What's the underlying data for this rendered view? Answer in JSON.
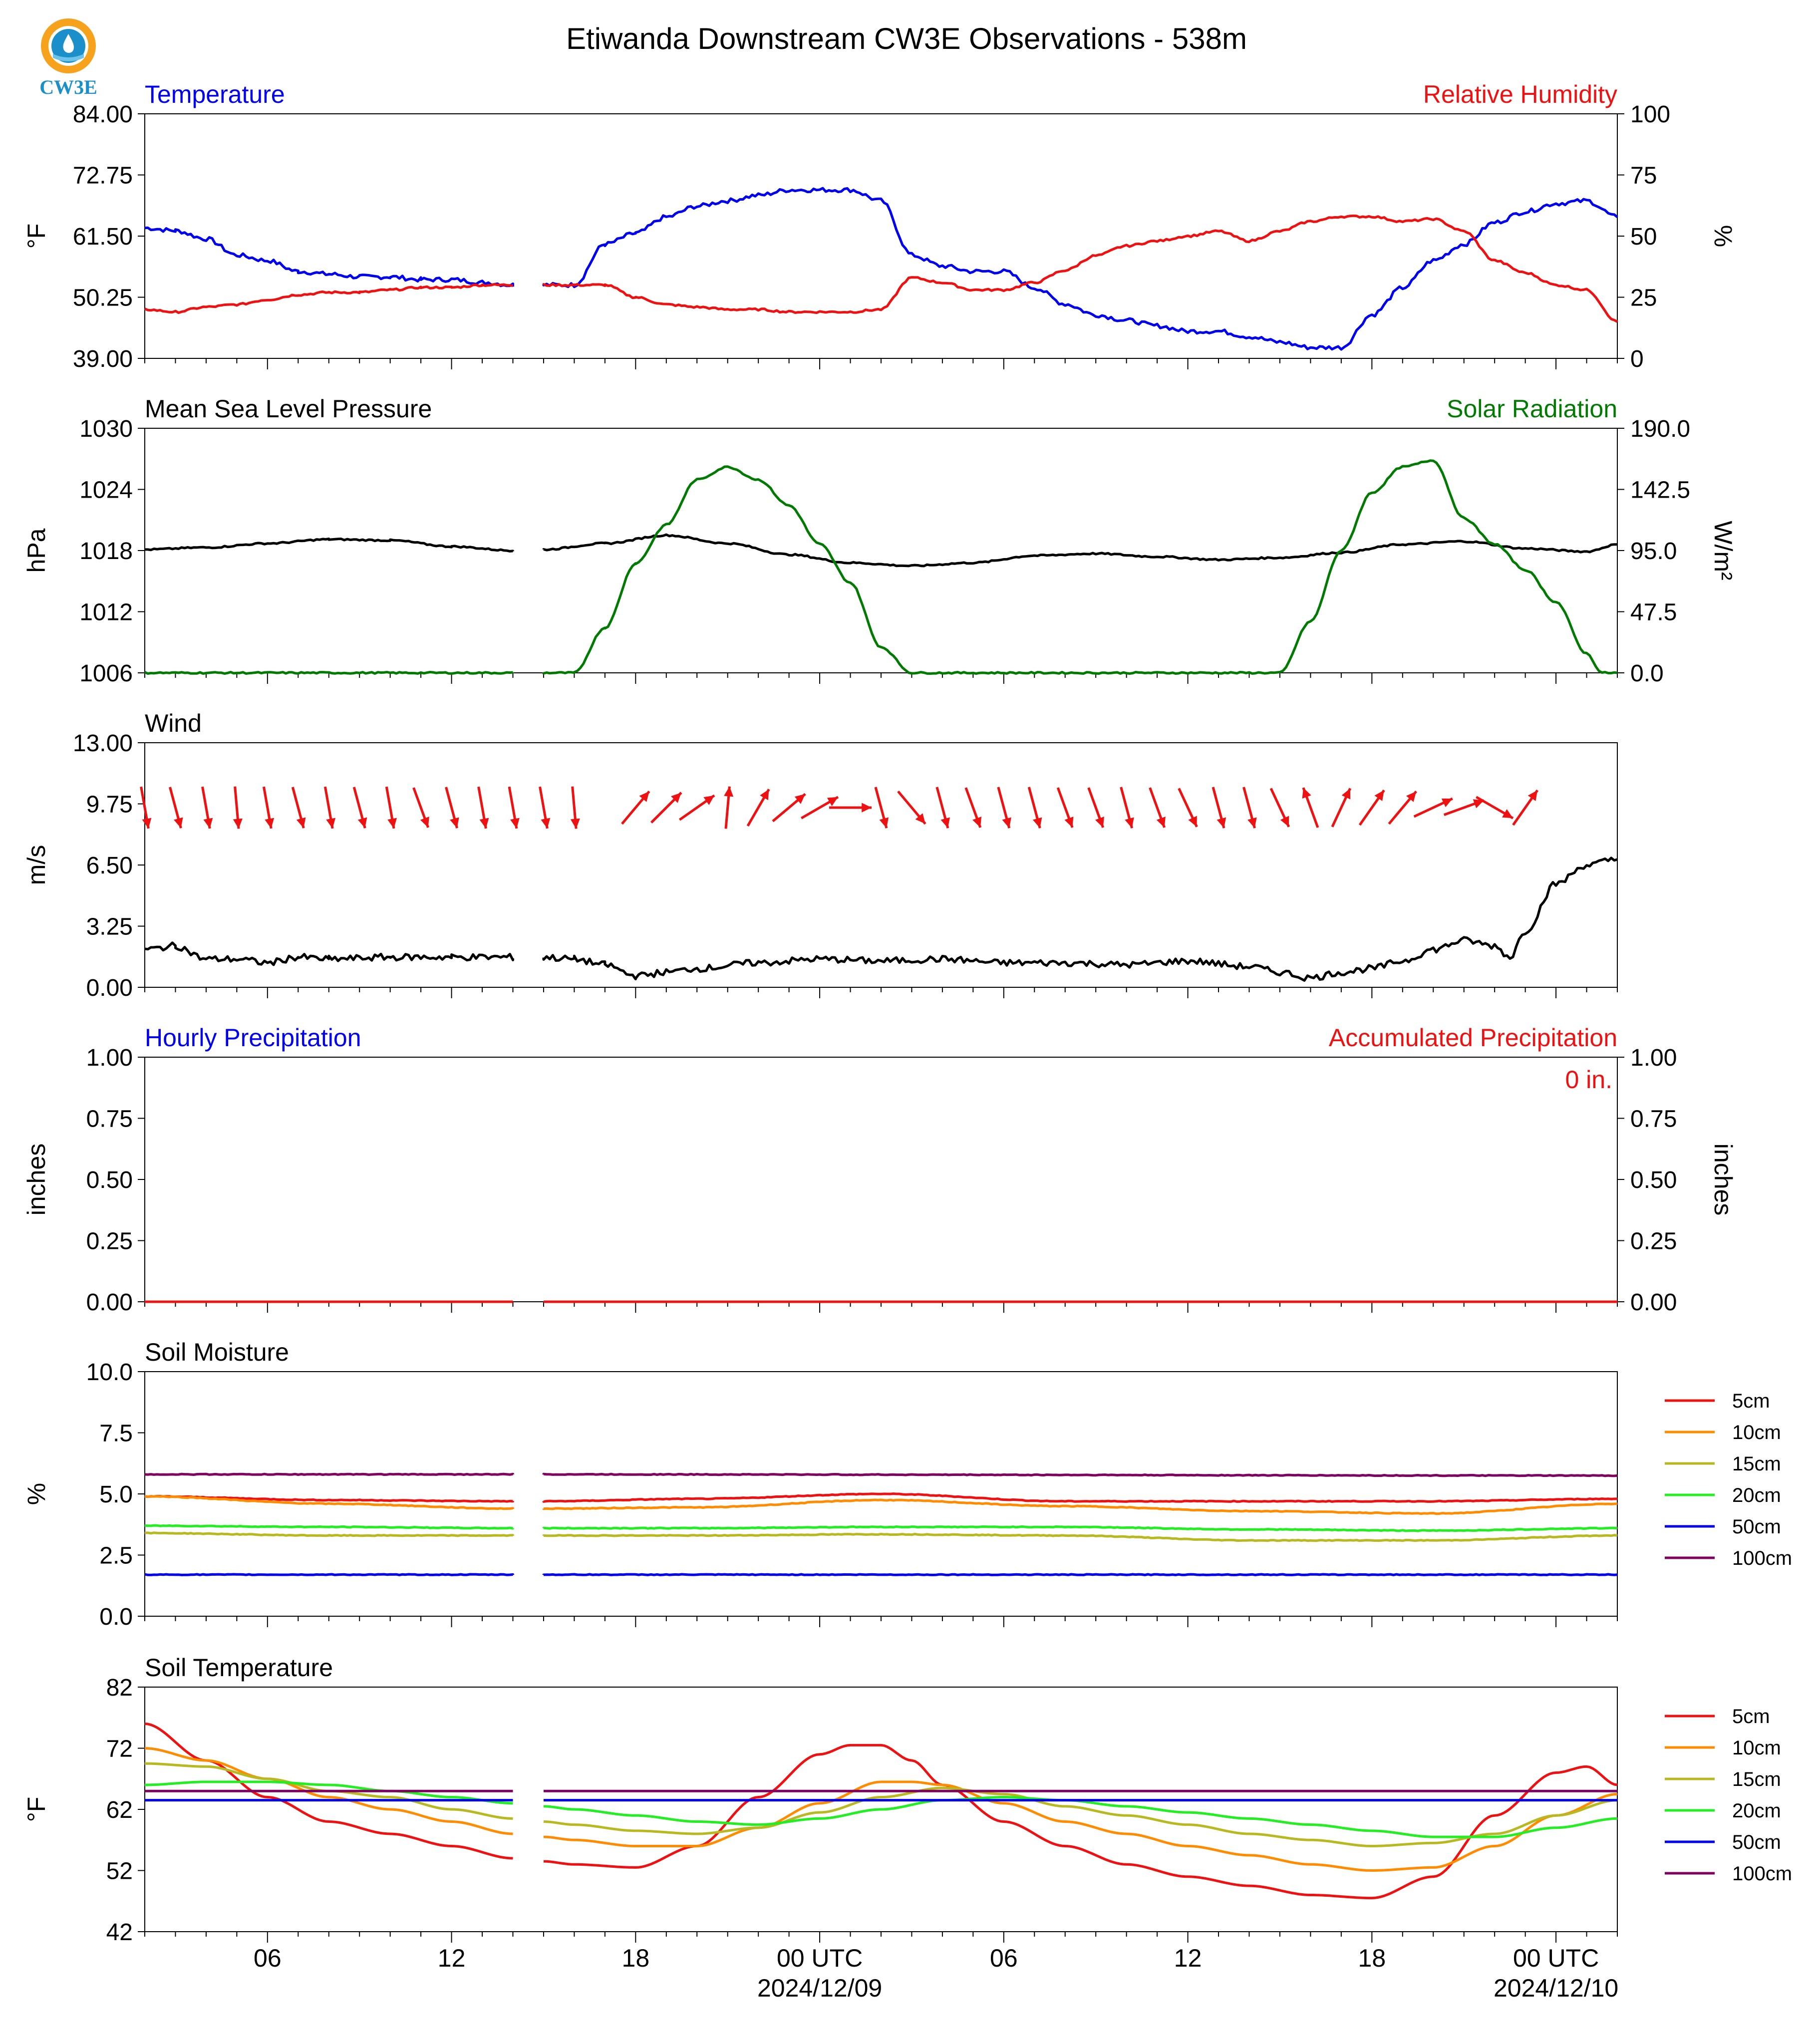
{
  "title": "Etiwanda Downstream CW3E Observations - 538m",
  "logo_text": "CW3E",
  "colors": {
    "blue": "#0000ee",
    "red": "#ee1111",
    "green": "#007a00",
    "black": "#000000",
    "orange": "#ff8c00",
    "olive": "#b8b820",
    "lime": "#22ee22",
    "purple": "#800060"
  },
  "x_axis": {
    "start": "2024-12-08T02:00Z",
    "end": "2024-12-10T02:00Z",
    "gap": [
      "2024-12-08T12:00Z",
      "2024-12-08T13:00Z"
    ],
    "tick_labels": [
      "06",
      "12",
      "18",
      "00 UTC",
      "06",
      "12",
      "18",
      "00 UTC"
    ],
    "date_labels": [
      "2024/12/09",
      "2024/12/10"
    ]
  },
  "chart_data": [
    {
      "type": "line",
      "panel": "temperature_rh",
      "left_title": "Temperature",
      "right_title": "Relative Humidity",
      "ylabel": "°F",
      "ylabel_right": "%",
      "ylim": [
        39,
        84
      ],
      "ylim_right": [
        0,
        100
      ],
      "yticks": [
        "84.00",
        "72.75",
        "61.50",
        "50.25",
        "39.00"
      ],
      "yticks_right": [
        "100",
        "75",
        "50",
        "25",
        "0"
      ],
      "series": [
        {
          "name": "Temperature",
          "axis": "left",
          "color": "blue",
          "x_hours": [
            0,
            1,
            2,
            3,
            4,
            5,
            6,
            7,
            8,
            9,
            10,
            11,
            12,
            13,
            14,
            15,
            16,
            17,
            18,
            19,
            20,
            21,
            22,
            23,
            24,
            25,
            26,
            27,
            28,
            29,
            30,
            31,
            32,
            33,
            34,
            35,
            36,
            37,
            38,
            39,
            40,
            41,
            42,
            43,
            44,
            45,
            46,
            47,
            48
          ],
          "values": [
            63,
            62.5,
            61,
            58,
            57,
            55,
            54.5,
            54,
            54,
            53.5,
            53.5,
            53,
            52.5,
            52.5,
            52.5,
            60,
            62,
            65,
            67,
            68,
            69,
            70,
            70,
            70,
            68,
            58,
            56,
            55,
            55,
            52,
            49,
            47,
            46,
            45,
            44,
            44,
            43,
            42,
            41,
            41,
            47,
            52,
            57,
            60,
            64,
            66,
            67.5,
            68,
            65
          ]
        },
        {
          "name": "Relative Humidity",
          "axis": "right",
          "color": "red",
          "x_hours": [
            0,
            1,
            2,
            3,
            4,
            5,
            6,
            7,
            8,
            9,
            10,
            11,
            12,
            13,
            14,
            15,
            16,
            17,
            18,
            19,
            20,
            21,
            22,
            23,
            24,
            25,
            26,
            27,
            28,
            29,
            30,
            31,
            32,
            33,
            34,
            35,
            36,
            37,
            38,
            39,
            40,
            41,
            42,
            43,
            44,
            45,
            46,
            47,
            48
          ],
          "values": [
            20,
            19,
            21,
            22,
            24,
            26,
            27,
            27,
            28,
            29,
            29,
            30,
            30,
            30,
            30,
            30,
            25,
            22,
            21,
            20,
            20,
            19,
            19,
            19,
            20,
            33,
            31,
            28,
            28,
            31,
            36,
            42,
            46,
            48,
            50,
            52,
            48,
            52,
            56,
            58,
            58,
            56,
            57,
            52,
            40,
            35,
            30,
            28,
            15
          ]
        }
      ]
    },
    {
      "type": "line",
      "panel": "pressure_solar",
      "left_title": "Mean Sea Level Pressure",
      "right_title": "Solar Radiation",
      "ylabel": "hPa",
      "ylabel_right": "W/m²",
      "ylim": [
        1006,
        1030
      ],
      "ylim_right": [
        0,
        190
      ],
      "yticks": [
        "1030",
        "1024",
        "1018",
        "1012",
        "1006"
      ],
      "yticks_right": [
        "190.0",
        "142.5",
        "95.0",
        "47.5",
        "0.0"
      ],
      "series": [
        {
          "name": "Mean Sea Level Pressure",
          "axis": "left",
          "color": "black",
          "x_hours": [
            0,
            2,
            4,
            6,
            8,
            10,
            12,
            13,
            15,
            17,
            19,
            21,
            23,
            25,
            27,
            29,
            31,
            33,
            35,
            37,
            39,
            41,
            43,
            45,
            47,
            48
          ],
          "values": [
            1018.1,
            1018.3,
            1018.7,
            1019.1,
            1019,
            1018.4,
            1018,
            1018.1,
            1018.7,
            1019.5,
            1018.7,
            1017.6,
            1016.8,
            1016.5,
            1016.8,
            1017.5,
            1017.7,
            1017.4,
            1017.1,
            1017.3,
            1017.8,
            1018.6,
            1018.9,
            1018.2,
            1017.9,
            1018.6
          ]
        },
        {
          "name": "Solar Radiation",
          "axis": "right",
          "color": "green",
          "x_hours": [
            0,
            12,
            13,
            14,
            15,
            16,
            17,
            18,
            19,
            20,
            21,
            22,
            23,
            24,
            25,
            26,
            36,
            37,
            38,
            39,
            40,
            41,
            42,
            43,
            44,
            45,
            46,
            47,
            47.5,
            48
          ],
          "values": [
            0,
            0,
            0,
            0,
            35,
            85,
            115,
            150,
            160,
            150,
            130,
            100,
            70,
            20,
            0,
            0,
            0,
            0,
            40,
            95,
            140,
            160,
            165,
            120,
            100,
            80,
            55,
            15,
            0,
            0
          ]
        }
      ]
    },
    {
      "type": "line",
      "panel": "wind",
      "left_title": "Wind",
      "ylabel": "m/s",
      "ylim": [
        0,
        13
      ],
      "yticks": [
        "13.00",
        "9.75",
        "6.50",
        "3.25",
        "0.00"
      ],
      "series": [
        {
          "name": "Wind",
          "axis": "left",
          "color": "black",
          "x_hours": [
            0,
            1,
            2,
            3,
            4,
            5,
            6,
            8,
            10,
            12,
            13,
            14,
            15,
            16,
            17,
            18,
            20,
            22,
            24,
            26,
            28,
            30,
            32,
            34,
            36,
            37,
            38,
            39,
            40,
            41,
            42,
            43,
            44,
            44.5,
            45,
            46,
            47,
            48
          ],
          "values": [
            2,
            2.2,
            1.5,
            1.5,
            1.3,
            1.6,
            1.5,
            1.6,
            1.6,
            1.6,
            1.6,
            1.5,
            1.2,
            0.6,
            0.8,
            1,
            1.3,
            1.5,
            1.4,
            1.5,
            1.3,
            1.3,
            1.2,
            1.4,
            1.1,
            0.8,
            0.5,
            0.8,
            1,
            1.4,
            2,
            2.5,
            2.2,
            1.6,
            3,
            5.5,
            6.5,
            6.8
          ]
        },
        {
          "name": "Wind direction (deg, from)",
          "axis": "none",
          "kind": "barbs",
          "x_hours": [
            0,
            1,
            2,
            3,
            4,
            5,
            6,
            7,
            8,
            9,
            10,
            11,
            12,
            13,
            14,
            16,
            17,
            18,
            19,
            20,
            21,
            22,
            23,
            24,
            25,
            26,
            27,
            28,
            29,
            30,
            31,
            32,
            33,
            34,
            35,
            36,
            37,
            38,
            39,
            40,
            41,
            42,
            43,
            44,
            45
          ],
          "values": [
            350,
            345,
            350,
            355,
            350,
            345,
            350,
            345,
            350,
            340,
            345,
            350,
            350,
            350,
            355,
            220,
            225,
            235,
            185,
            210,
            230,
            240,
            270,
            345,
            320,
            345,
            340,
            345,
            345,
            340,
            340,
            345,
            340,
            335,
            345,
            345,
            335,
            160,
            205,
            215,
            220,
            245,
            250,
            300,
            215
          ]
        }
      ]
    },
    {
      "type": "line",
      "panel": "precipitation",
      "left_title": "Hourly Precipitation",
      "right_title": "Accumulated Precipitation",
      "annotation": "0 in.",
      "ylabel": "inches",
      "ylabel_right": "inches",
      "ylim": [
        0,
        1
      ],
      "ylim_right": [
        0,
        1
      ],
      "yticks": [
        "1.00",
        "0.75",
        "0.50",
        "0.25",
        "0.00"
      ],
      "yticks_right": [
        "1.00",
        "0.75",
        "0.50",
        "0.25",
        "0.00"
      ],
      "series": [
        {
          "name": "Hourly Precipitation",
          "axis": "left",
          "color": "red",
          "x_hours": [
            0,
            48
          ],
          "values": [
            0,
            0
          ]
        }
      ]
    },
    {
      "type": "line",
      "panel": "soil_moisture",
      "left_title": "Soil Moisture",
      "ylabel": "%",
      "ylim": [
        0,
        10
      ],
      "yticks": [
        "10.0",
        "7.5",
        "5.0",
        "2.5",
        "0.0"
      ],
      "legend_position": "right",
      "series": [
        {
          "name": "5cm",
          "color": "red",
          "x_hours": [
            0,
            6,
            12,
            13,
            18,
            24,
            30,
            36,
            42,
            48
          ],
          "values": [
            4.9,
            4.75,
            4.7,
            4.7,
            4.8,
            5.0,
            4.7,
            4.7,
            4.7,
            4.8
          ]
        },
        {
          "name": "10cm",
          "color": "orange",
          "x_hours": [
            0,
            6,
            12,
            13,
            18,
            24,
            30,
            36,
            42,
            48
          ],
          "values": [
            4.9,
            4.6,
            4.4,
            4.4,
            4.45,
            4.75,
            4.5,
            4.3,
            4.2,
            4.6
          ]
        },
        {
          "name": "15cm",
          "color": "olive",
          "x_hours": [
            0,
            6,
            12,
            13,
            18,
            24,
            30,
            36,
            42,
            48
          ],
          "values": [
            3.4,
            3.3,
            3.3,
            3.3,
            3.3,
            3.35,
            3.3,
            3.1,
            3.1,
            3.3
          ]
        },
        {
          "name": "20cm",
          "color": "lime",
          "x_hours": [
            0,
            6,
            12,
            13,
            18,
            24,
            30,
            36,
            42,
            48
          ],
          "values": [
            3.7,
            3.65,
            3.6,
            3.6,
            3.6,
            3.65,
            3.65,
            3.55,
            3.5,
            3.6
          ]
        },
        {
          "name": "50cm",
          "color": "blue",
          "x_hours": [
            0,
            12,
            13,
            48
          ],
          "values": [
            1.7,
            1.7,
            1.7,
            1.7
          ]
        },
        {
          "name": "100cm",
          "color": "purple",
          "x_hours": [
            0,
            12,
            13,
            48
          ],
          "values": [
            5.8,
            5.8,
            5.8,
            5.75
          ]
        }
      ]
    },
    {
      "type": "line",
      "panel": "soil_temperature",
      "left_title": "Soil Temperature",
      "ylabel": "°F",
      "ylim": [
        42,
        82
      ],
      "yticks": [
        "82",
        "72",
        "62",
        "52",
        "42"
      ],
      "legend_position": "right",
      "series": [
        {
          "name": "5cm",
          "color": "red",
          "x_hours": [
            0,
            2,
            4,
            6,
            8,
            10,
            12,
            13,
            14,
            16,
            18,
            20,
            22,
            23,
            24,
            25,
            26,
            28,
            30,
            32,
            34,
            36,
            38,
            40,
            42,
            44,
            46,
            47,
            48
          ],
          "values": [
            76,
            70,
            64,
            60,
            58,
            56,
            54,
            53.5,
            53,
            52.5,
            56,
            64,
            71,
            72.5,
            72.5,
            70,
            66,
            60,
            56,
            53,
            51,
            49.5,
            48,
            47.5,
            51,
            61,
            68,
            69,
            66
          ]
        },
        {
          "name": "10cm",
          "color": "orange",
          "x_hours": [
            0,
            2,
            4,
            6,
            8,
            10,
            12,
            13,
            14,
            16,
            18,
            20,
            22,
            24,
            25,
            26,
            28,
            30,
            32,
            34,
            36,
            38,
            40,
            42,
            44,
            46,
            48
          ],
          "values": [
            72,
            70,
            67,
            64,
            62,
            60,
            58,
            57.5,
            57,
            56,
            56,
            59,
            63,
            66.5,
            66.5,
            66,
            63,
            60,
            58,
            56,
            54.5,
            53,
            52,
            52.5,
            56,
            61,
            64.5
          ]
        },
        {
          "name": "15cm",
          "color": "olive",
          "x_hours": [
            0,
            2,
            4,
            6,
            8,
            10,
            12,
            13,
            14,
            16,
            18,
            20,
            22,
            24,
            26,
            28,
            30,
            32,
            34,
            36,
            38,
            40,
            42,
            44,
            46,
            48
          ],
          "values": [
            69.5,
            69,
            67,
            65,
            64,
            62,
            60.5,
            60,
            59.5,
            58.5,
            58,
            59,
            61.5,
            64,
            65.5,
            64.5,
            62.5,
            61,
            59.5,
            58,
            57,
            56,
            56.5,
            58,
            61,
            63.5
          ]
        },
        {
          "name": "20cm",
          "color": "lime",
          "x_hours": [
            0,
            2,
            4,
            6,
            8,
            10,
            12,
            13,
            14,
            16,
            18,
            20,
            22,
            24,
            26,
            28,
            30,
            32,
            34,
            36,
            38,
            40,
            42,
            44,
            46,
            48
          ],
          "values": [
            66,
            66.5,
            66.5,
            66,
            65,
            64,
            63,
            62.5,
            62,
            61,
            60,
            59.5,
            60.5,
            62,
            63.5,
            64,
            63.5,
            62.5,
            61.5,
            60.5,
            59.5,
            58.5,
            57.5,
            57.5,
            59,
            60.5
          ]
        },
        {
          "name": "50cm",
          "color": "blue",
          "x_hours": [
            0,
            12,
            13,
            48
          ],
          "values": [
            63.5,
            63.5,
            63.5,
            63.5
          ]
        },
        {
          "name": "100cm",
          "color": "purple",
          "x_hours": [
            0,
            12,
            13,
            48
          ],
          "values": [
            65,
            65,
            65,
            65
          ]
        }
      ]
    }
  ]
}
